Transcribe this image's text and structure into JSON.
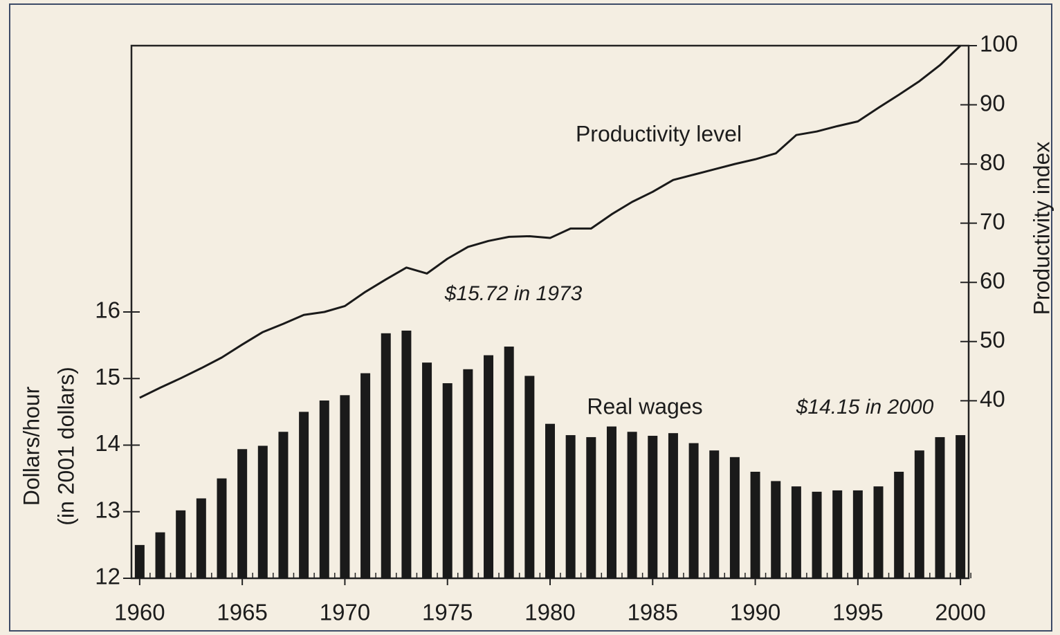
{
  "chart_data": {
    "type": "bar",
    "x": [
      1960,
      1961,
      1962,
      1963,
      1964,
      1965,
      1966,
      1967,
      1968,
      1969,
      1970,
      1971,
      1972,
      1973,
      1974,
      1975,
      1976,
      1977,
      1978,
      1979,
      1980,
      1981,
      1982,
      1983,
      1984,
      1985,
      1986,
      1987,
      1988,
      1989,
      1990,
      1991,
      1992,
      1993,
      1994,
      1995,
      1996,
      1997,
      1998,
      1999,
      2000
    ],
    "series": [
      {
        "name": "Real wages",
        "type": "bar",
        "color": "#1a1a1a",
        "values": [
          12.5,
          12.69,
          13.02,
          13.2,
          13.5,
          13.94,
          13.99,
          14.2,
          14.5,
          14.67,
          14.75,
          15.08,
          15.68,
          15.72,
          15.24,
          14.93,
          15.14,
          15.35,
          15.48,
          15.04,
          14.32,
          14.15,
          14.12,
          14.28,
          14.2,
          14.14,
          14.18,
          14.03,
          13.92,
          13.82,
          13.6,
          13.46,
          13.38,
          13.3,
          13.32,
          13.32,
          13.38,
          13.6,
          13.92,
          14.12,
          14.15
        ]
      },
      {
        "name": "Productivity level",
        "type": "line",
        "axis": "y2",
        "color": "#1a1a1a",
        "values": [
          40.5,
          42.2,
          43.8,
          45.5,
          47.3,
          49.5,
          51.6,
          53,
          54.5,
          55,
          56,
          58.4,
          60.5,
          62.5,
          61.5,
          64,
          66,
          67,
          67.7,
          67.8,
          67.5,
          69.1,
          69.1,
          71.5,
          73.6,
          75.3,
          77.3,
          78.2,
          79.1,
          80,
          80.8,
          81.8,
          84.9,
          85.5,
          86.4,
          87.2,
          89.5,
          91.7,
          94,
          96.7,
          100
        ]
      }
    ],
    "annotations": [
      "$15.72 in 1973",
      "$14.15 in 2000"
    ],
    "ylabel": [
      "Dollars/hour",
      "(in 2001 dollars)"
    ],
    "y2label": "Productivity index",
    "xlim": [
      1959.6,
      2000.4
    ],
    "xticks": [
      1960,
      1965,
      1970,
      1975,
      1980,
      1985,
      1990,
      1995,
      2000
    ],
    "ylim": [
      12,
      20
    ],
    "yticks": [
      12,
      13,
      14,
      15,
      16
    ],
    "y2lim": [
      10,
      100
    ],
    "y2ticks": [
      40,
      50,
      60,
      70,
      80,
      90,
      100
    ]
  }
}
